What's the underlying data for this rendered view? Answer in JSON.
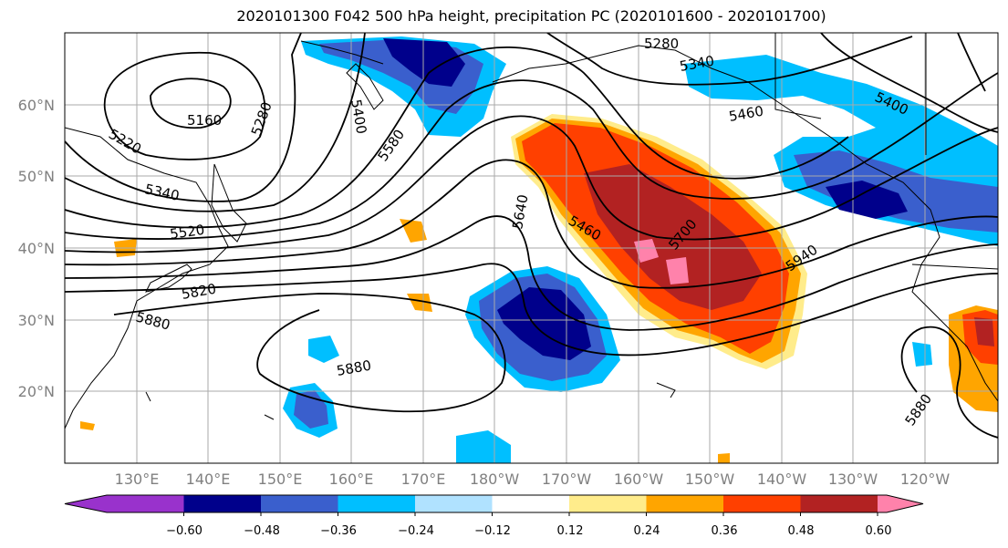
{
  "title": "2020101300 F042 500 hPa height, precipitation PC (2020101600 - 2020101700)",
  "map": {
    "lat_labels": [
      "60°N",
      "50°N",
      "40°N",
      "30°N",
      "20°N"
    ],
    "lon_labels": [
      "130°E",
      "140°E",
      "150°E",
      "160°E",
      "170°E",
      "180°W",
      "170°W",
      "160°W",
      "150°W",
      "140°W",
      "130°W",
      "120°W"
    ],
    "contour_labels": [
      "5160",
      "5220",
      "5280",
      "5340",
      "5400",
      "5460",
      "5520",
      "5580",
      "5640",
      "5700",
      "5820",
      "5880",
      "5940",
      "5280",
      "5340",
      "5400",
      "5460",
      "5880",
      "5880"
    ]
  },
  "colorbar": {
    "ticks": [
      "−0.60",
      "−0.48",
      "−0.36",
      "−0.24",
      "−0.12",
      "0.12",
      "0.24",
      "0.36",
      "0.48",
      "0.60"
    ],
    "colors": [
      "#9932CC",
      "#00008B",
      "#3A5FCD",
      "#00BFFF",
      "#B0E2FF",
      "#FFFFFF",
      "#FFEC8B",
      "#FFA500",
      "#FF4000",
      "#B22222",
      "#FF82AB"
    ]
  }
}
